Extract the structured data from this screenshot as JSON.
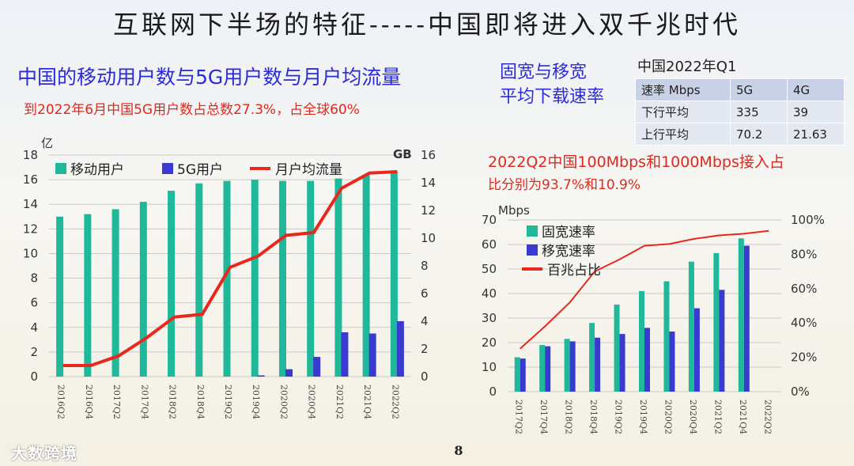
{
  "header": {
    "title": "互联网下半场的特征-----中国即将进入双千兆时代",
    "page_number": "8",
    "brand": "大数跨境"
  },
  "left": {
    "subtitle": "中国的移动用户数与5G用户数与月户均流量",
    "note": "到2022年6月中国5G用户数占总数27.3%，占全球60%"
  },
  "right": {
    "title_line1": "固宽与移宽",
    "title_line2": "平均下载速率",
    "table_title": "中国2022年Q1",
    "note_line1": "2022Q2中国100Mbps和1000Mbps接入占",
    "note_line2": "比分别为93.7%和10.9%"
  },
  "speed_table": {
    "headers": [
      "速率 Mbps",
      "5G",
      "4G"
    ],
    "rows": [
      [
        "下行平均",
        "335",
        "39"
      ],
      [
        "上行平均",
        "70.2",
        "21.63"
      ]
    ]
  },
  "colors": {
    "teal": "#1fb89a",
    "blue": "#3a3ad0",
    "red": "#e8281e"
  },
  "chart_data": [
    {
      "type": "bar",
      "categories": [
        "2016Q2",
        "2016Q4",
        "2017Q2",
        "2017Q4",
        "2018Q2",
        "2018Q4",
        "2019Q2",
        "2019Q4",
        "2020Q2",
        "2020Q4",
        "2021Q2",
        "2021Q4",
        "2022Q2"
      ],
      "series": [
        {
          "name": "移动用户",
          "type": "bar",
          "axis": "left",
          "values": [
            13.0,
            13.2,
            13.6,
            14.2,
            15.1,
            15.7,
            15.9,
            16.0,
            15.9,
            15.9,
            16.1,
            16.4,
            16.6
          ]
        },
        {
          "name": "5G用户",
          "type": "bar",
          "axis": "left",
          "values": [
            0,
            0,
            0,
            0,
            0,
            0,
            0,
            0.1,
            0.6,
            1.6,
            3.6,
            3.5,
            4.5
          ]
        },
        {
          "name": "月户均流量",
          "type": "line",
          "axis": "right",
          "values": [
            0.8,
            0.8,
            1.5,
            2.8,
            4.3,
            4.5,
            7.9,
            8.7,
            10.2,
            10.4,
            13.6,
            14.7,
            14.8
          ]
        }
      ],
      "y_left": {
        "label": "亿",
        "range": [
          0,
          18
        ],
        "ticks": [
          "0",
          "2",
          "4",
          "6",
          "8",
          "10",
          "12",
          "14",
          "16",
          "18"
        ]
      },
      "y_right": {
        "label": "GB",
        "range": [
          0,
          16
        ],
        "ticks": [
          "0",
          "2",
          "4",
          "6",
          "8",
          "10",
          "12",
          "14",
          "16"
        ]
      }
    },
    {
      "type": "bar",
      "categories": [
        "2017Q2",
        "2017Q4",
        "2018Q2",
        "2018Q4",
        "2019Q2",
        "2019Q4",
        "2020Q2",
        "2020Q4",
        "2021Q2",
        "2021Q4",
        "2022Q2"
      ],
      "series": [
        {
          "name": "固宽速率",
          "type": "bar",
          "axis": "left",
          "values": [
            14.0,
            19.0,
            21.5,
            28.0,
            35.5,
            41.0,
            45.0,
            53.0,
            56.5,
            62.5,
            null
          ]
        },
        {
          "name": "移宽速率",
          "type": "bar",
          "axis": "left",
          "values": [
            13.5,
            18.5,
            20.5,
            22.0,
            23.5,
            26.0,
            24.5,
            34.0,
            41.5,
            59.5,
            null
          ]
        },
        {
          "name": "百兆占比",
          "type": "line",
          "axis": "right",
          "values": [
            25,
            38,
            52,
            70,
            77,
            85,
            86,
            89,
            91,
            92,
            93.7
          ]
        }
      ],
      "y_left": {
        "label": "Mbps",
        "range": [
          0,
          70
        ],
        "ticks": [
          "0",
          "10",
          "20",
          "30",
          "40",
          "50",
          "60",
          "70"
        ]
      },
      "y_right": {
        "label": "",
        "range": [
          0,
          100
        ],
        "ticks": [
          "0%",
          "20%",
          "40%",
          "60%",
          "80%",
          "100%"
        ]
      }
    }
  ]
}
